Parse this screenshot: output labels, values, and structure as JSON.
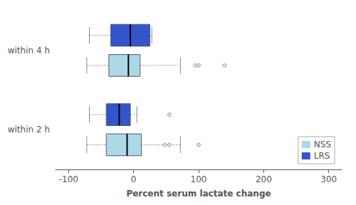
{
  "chart_data": {
    "type": "boxplot",
    "orientation": "horizontal",
    "xlabel": "Percent serum lactate change",
    "categories": [
      "within 2 h",
      "within 4 h"
    ],
    "xlim": [
      -120,
      320
    ],
    "xticks": [
      -100,
      0,
      100,
      200,
      300
    ],
    "grid": false,
    "legend": "lower right",
    "series": [
      {
        "name": "NSS",
        "color": "#add8e6",
        "values": [
          {
            "whisker_low": -72,
            "q1": -42,
            "median": -10,
            "q3": 12,
            "whisker_high": 72,
            "outliers": [
              48,
              55,
              100
            ]
          },
          {
            "whisker_low": -72,
            "q1": -38,
            "median": -8,
            "q3": 10,
            "whisker_high": 72,
            "outliers": [
              95,
              100,
              140
            ]
          }
        ]
      },
      {
        "name": "LRS",
        "color": "#3355cc",
        "values": [
          {
            "whisker_low": -68,
            "q1": -42,
            "median": -22,
            "q3": -5,
            "whisker_high": 5,
            "outliers": [
              55
            ]
          },
          {
            "whisker_low": -68,
            "q1": -35,
            "median": -5,
            "q3": 25,
            "whisker_high": 28,
            "outliers": []
          }
        ]
      }
    ]
  }
}
